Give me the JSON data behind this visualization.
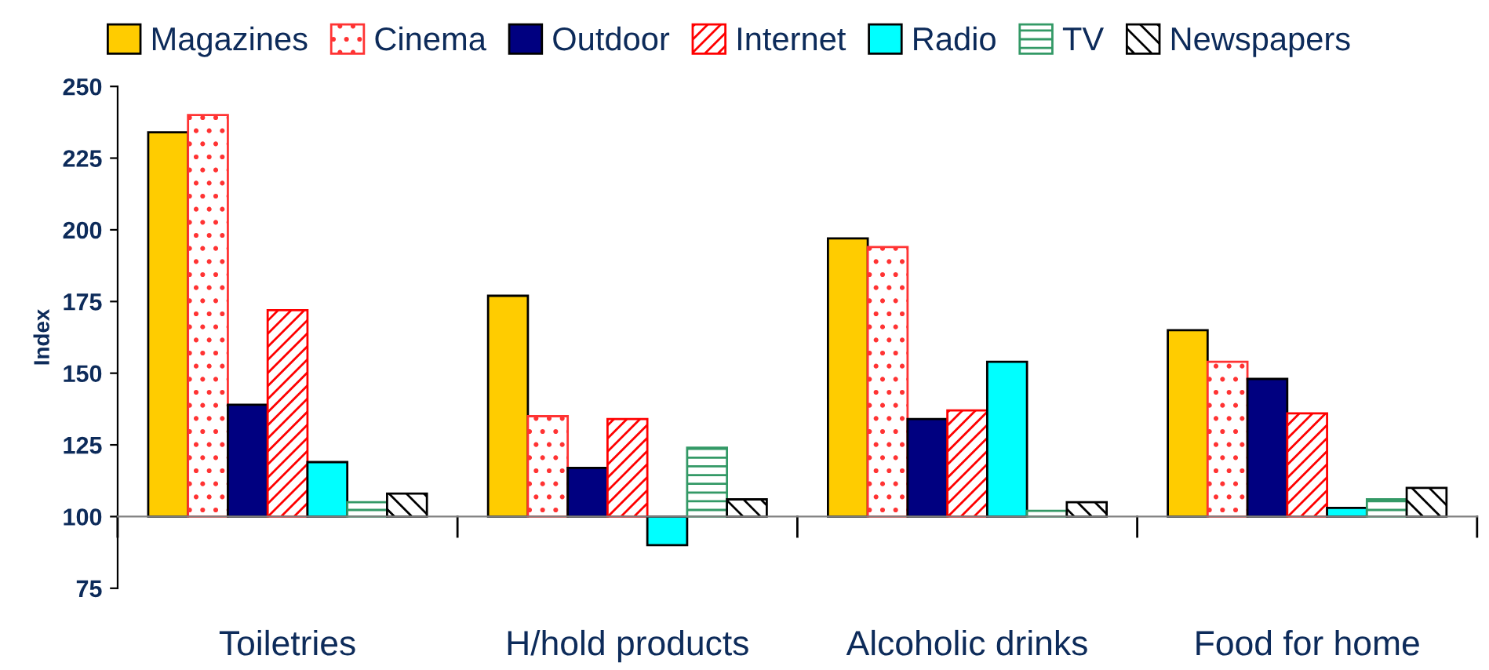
{
  "chart_data": {
    "type": "bar",
    "ylabel": "Index",
    "categories": [
      "Toiletries",
      "H/hold products",
      "Alcoholic drinks",
      "Food for home"
    ],
    "ylim": [
      75,
      250
    ],
    "yticks": [
      75,
      100,
      125,
      150,
      175,
      200,
      225,
      250
    ],
    "legend": "top",
    "series": [
      {
        "name": "Magazines",
        "color": "#ffcc00",
        "base": [
          100,
          100,
          100,
          100
        ],
        "values": [
          134,
          77,
          97,
          65
        ]
      },
      {
        "name": "Cinema",
        "color": "#ff3333",
        "base": [
          100,
          100,
          100,
          100
        ],
        "values": [
          140,
          35,
          94,
          54
        ]
      },
      {
        "name": "Outdoor",
        "color": "#000080",
        "base": [
          100,
          100,
          100,
          100
        ],
        "values": [
          39,
          17,
          34,
          48
        ]
      },
      {
        "name": "Internet",
        "color": "#ff0000",
        "base": [
          100,
          100,
          100,
          100
        ],
        "values": [
          72,
          34,
          37,
          36
        ]
      },
      {
        "name": "Radio",
        "color": "#00ffff",
        "base": [
          100,
          100,
          100,
          100
        ],
        "values": [
          19,
          -10,
          54,
          3
        ]
      },
      {
        "name": "TV",
        "color": "#339966",
        "base": [
          100,
          100,
          100,
          100
        ],
        "values": [
          5,
          24,
          2,
          6
        ]
      },
      {
        "name": "Newspapers",
        "color": "#000000",
        "base": [
          100,
          100,
          100,
          100
        ],
        "values": [
          8,
          6,
          5,
          10
        ]
      }
    ]
  }
}
